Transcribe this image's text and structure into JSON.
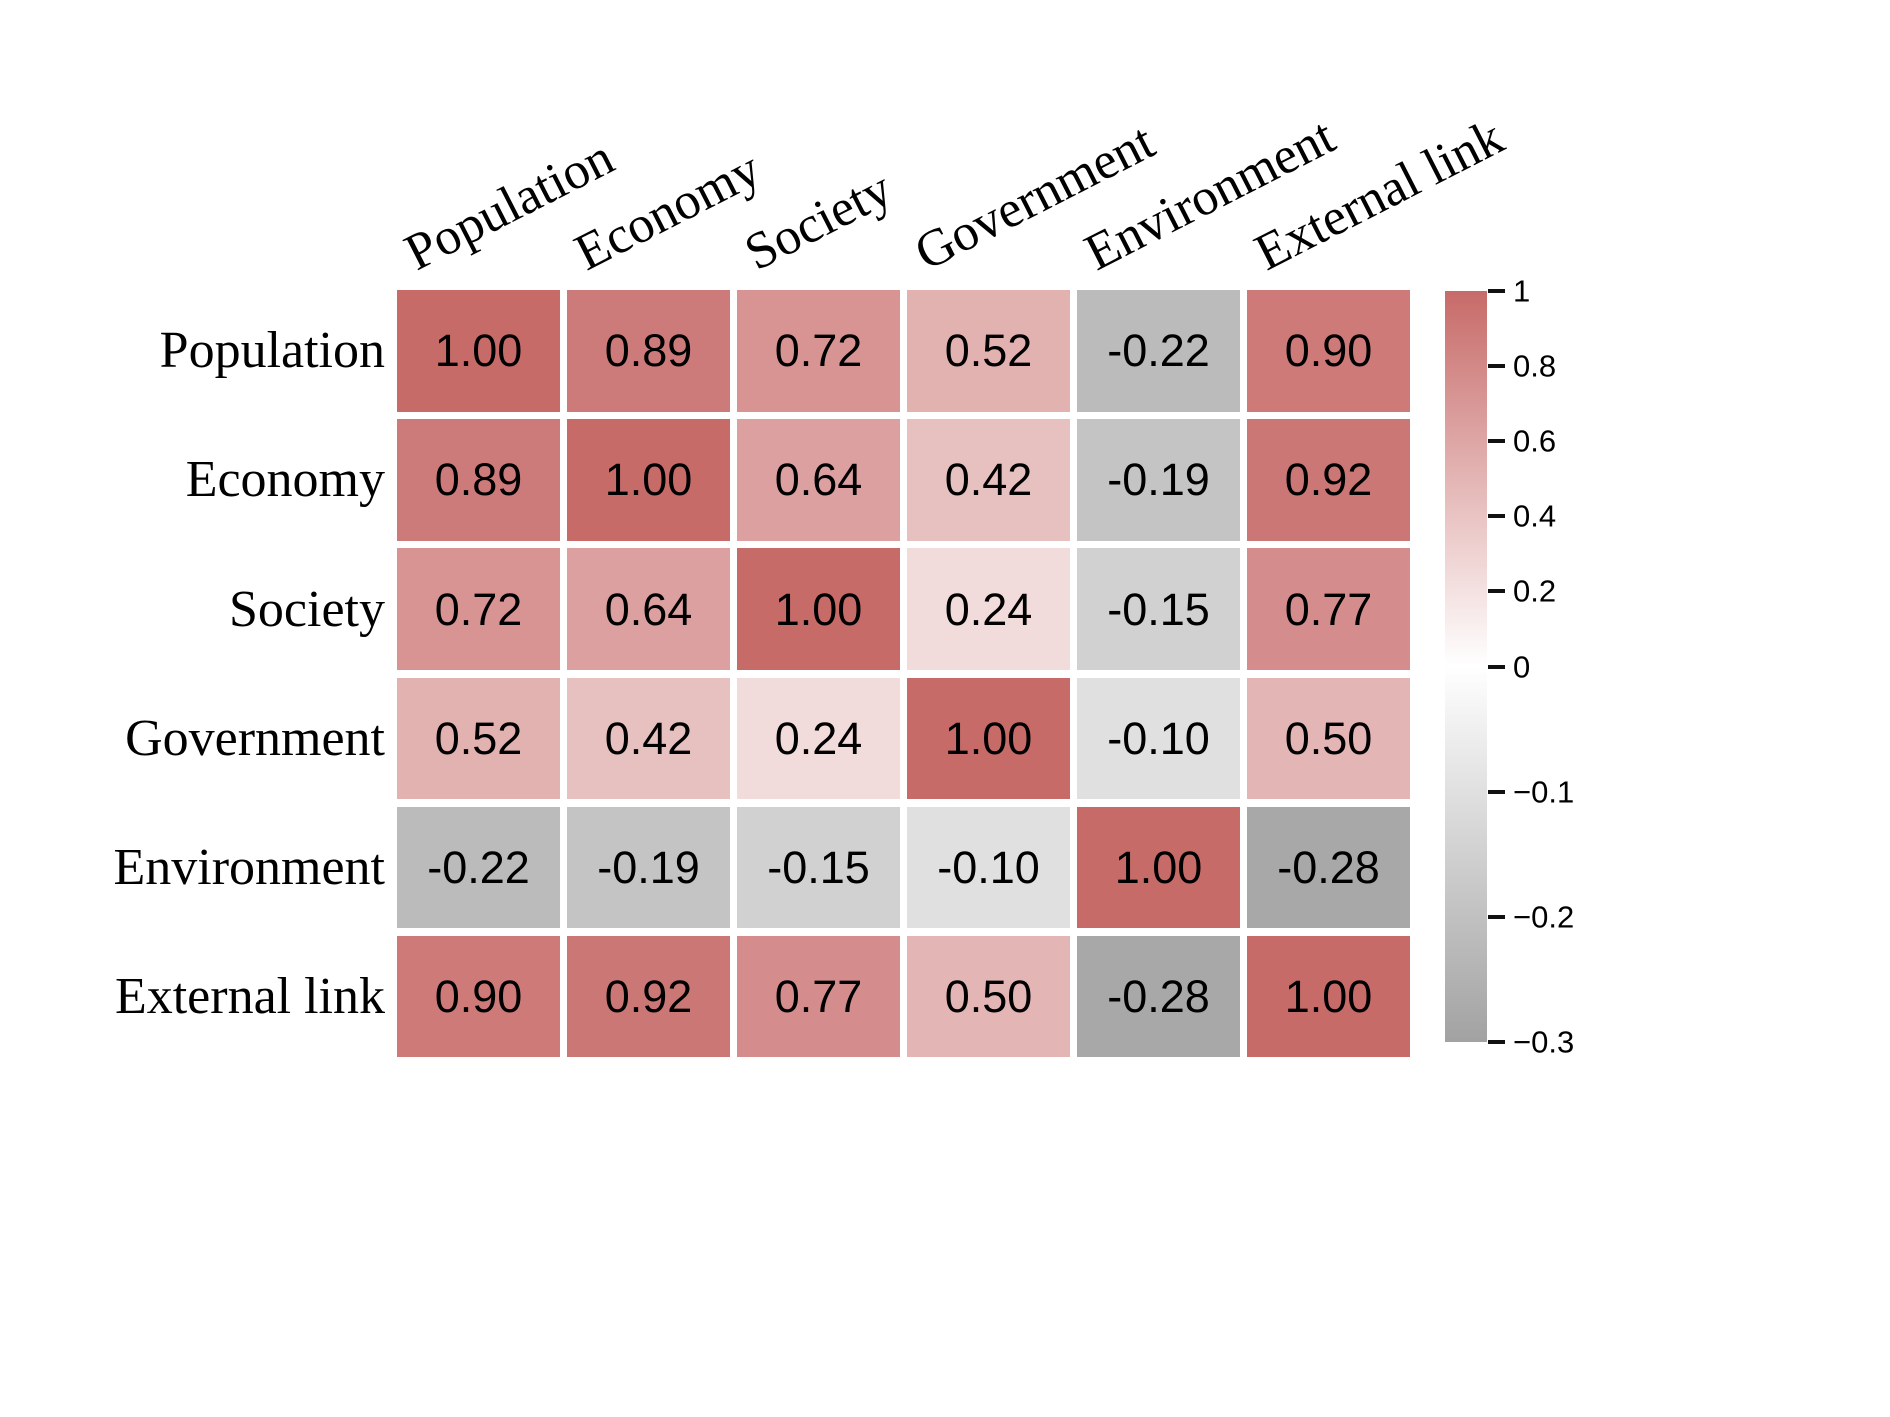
{
  "chart_data": {
    "type": "heatmap",
    "title": "",
    "categories": [
      "Population",
      "Economy",
      "Society",
      "Government",
      "Environment",
      "External link"
    ],
    "matrix": [
      [
        1.0,
        0.89,
        0.72,
        0.52,
        -0.22,
        0.9
      ],
      [
        0.89,
        1.0,
        0.64,
        0.42,
        -0.19,
        0.92
      ],
      [
        0.72,
        0.64,
        1.0,
        0.24,
        -0.15,
        0.77
      ],
      [
        0.52,
        0.42,
        0.24,
        1.0,
        -0.1,
        0.5
      ],
      [
        -0.22,
        -0.19,
        -0.15,
        -0.1,
        1.0,
        -0.28
      ],
      [
        0.9,
        0.92,
        0.77,
        0.5,
        -0.28,
        1.0
      ]
    ],
    "value_decimals": 2,
    "colorbar": {
      "tick_values": [
        1,
        0.8,
        0.6,
        0.4,
        0.2,
        0,
        -0.1,
        -0.2,
        -0.3
      ],
      "tick_labels": [
        "1",
        "0.8",
        "0.6",
        "0.4",
        "0.2",
        "0",
        "−0.1",
        "−0.2",
        "−0.3"
      ],
      "range_max": 1,
      "range_min": -0.3,
      "positive_color": "#c76b69",
      "zero_color": "#ffffff",
      "negative_color": "#a2a2a2",
      "legend_position": "right"
    },
    "grid": "off",
    "cell_text_color": "#000000"
  }
}
